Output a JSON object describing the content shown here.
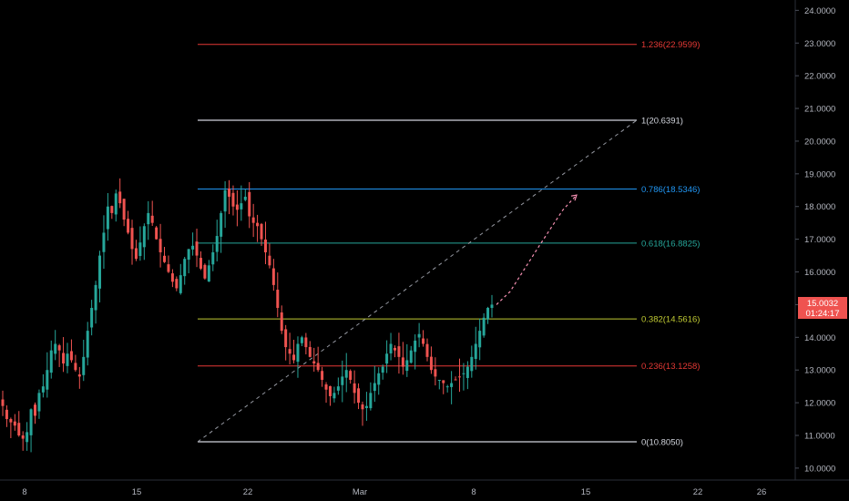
{
  "chart_data": {
    "type": "candlestick",
    "title": "",
    "xlabel": "",
    "ylabel": "",
    "y_axis": {
      "ticks": [
        "10.0000",
        "11.0000",
        "12.0000",
        "13.0000",
        "14.0000",
        "15.0000",
        "16.0000",
        "17.0000",
        "18.0000",
        "19.0000",
        "20.0000",
        "21.0000",
        "22.0000",
        "23.0000",
        "24.0000"
      ],
      "ylim": [
        9.85,
        24.2
      ]
    },
    "x_axis": {
      "ticks": [
        "8",
        "15",
        "22",
        "Mar",
        "8",
        "15",
        "22",
        "26"
      ]
    },
    "last_price": {
      "value": "15.0032",
      "countdown": "01:24:17",
      "color": "#ef5350"
    },
    "fib_levels": [
      {
        "ratio": 1.236,
        "price": 22.9599,
        "label": "1.236(22.9599)",
        "color": "#e53935"
      },
      {
        "ratio": 1,
        "price": 20.6391,
        "label": "1(20.6391)",
        "color": "#d1d4dc"
      },
      {
        "ratio": 0.786,
        "price": 18.5346,
        "label": "0.786(18.5346)",
        "color": "#2196f3"
      },
      {
        "ratio": 0.618,
        "price": 16.8825,
        "label": "0.618(16.8825)",
        "color": "#26a69a"
      },
      {
        "ratio": 0.382,
        "price": 14.5616,
        "label": "0.382(14.5616)",
        "color": "#c0ca33"
      },
      {
        "ratio": 0.236,
        "price": 13.1258,
        "label": "0.236(13.1258)",
        "color": "#e53935"
      },
      {
        "ratio": 0,
        "price": 10.805,
        "label": "0(10.8050)",
        "color": "#d1d4dc"
      }
    ],
    "colors": {
      "up": "#26a69a",
      "down": "#ef5350",
      "projection": "#f48fb1"
    },
    "grid": false,
    "series": [
      {
        "name": "",
        "values": [
          11.9,
          11.5,
          11.4,
          11.3,
          11.0,
          10.9,
          11.1,
          11.8,
          11.6,
          12.3,
          12.5,
          13.0,
          13.6,
          13.8,
          13.6,
          13.2,
          13.5,
          13.3,
          13.0,
          12.8,
          13.4,
          14.2,
          14.9,
          15.6,
          16.5,
          17.2,
          18.0,
          17.8,
          18.4,
          18.1,
          17.6,
          17.2,
          16.7,
          16.4,
          16.9,
          17.4,
          17.8,
          17.5,
          17.0,
          16.6,
          16.3,
          16.0,
          15.7,
          15.5,
          15.9,
          16.4,
          16.7,
          16.8,
          16.5,
          16.1,
          15.8,
          16.2,
          16.6,
          17.1,
          17.8,
          18.5,
          18.3,
          18.0,
          17.9,
          18.1,
          18.3,
          17.7,
          17.5,
          17.4,
          17.0,
          16.6,
          16.2,
          15.6,
          14.9,
          14.2,
          13.7,
          13.5,
          13.3,
          13.8,
          14.0,
          13.7,
          13.4,
          13.2,
          13.0,
          12.7,
          12.4,
          12.2,
          12.3,
          12.5,
          12.8,
          13.0,
          12.7,
          12.3,
          12.0,
          11.8,
          11.9,
          12.3,
          12.6,
          12.9,
          13.1,
          13.5,
          13.8,
          13.6,
          13.4,
          13.1,
          13.3,
          13.6,
          13.9,
          14.1,
          13.8,
          13.4,
          13.0,
          12.8,
          12.7,
          12.6,
          12.5,
          12.6,
          12.7,
          12.8,
          12.9,
          13.1,
          13.4,
          13.8,
          14.2,
          14.6,
          14.9,
          15.0
        ]
      }
    ]
  }
}
